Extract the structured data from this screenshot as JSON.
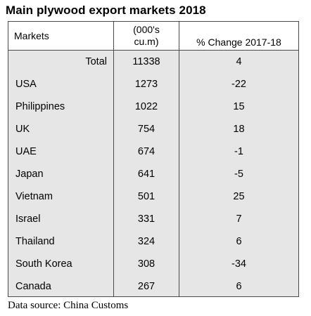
{
  "title": "Main plywood export markets 2018",
  "source": "Data source: China Customs",
  "chart_data": {
    "type": "table",
    "title": "Main plywood export markets 2018",
    "columns": [
      "Markets",
      "(000's\ncu.m)",
      "% Change 2017-18"
    ],
    "rows": [
      {
        "market": "Total",
        "volume": "11338",
        "change": "4"
      },
      {
        "market": "USA",
        "volume": "1273",
        "change": "-22"
      },
      {
        "market": "Philippines",
        "volume": "1022",
        "change": "15"
      },
      {
        "market": "UK",
        "volume": "754",
        "change": "18"
      },
      {
        "market": "UAE",
        "volume": "674",
        "change": "-1"
      },
      {
        "market": "Japan",
        "volume": "641",
        "change": "-5"
      },
      {
        "market": "Vietnam",
        "volume": "501",
        "change": "25"
      },
      {
        "market": "Israel",
        "volume": "331",
        "change": "7"
      },
      {
        "market": "Thailand",
        "volume": "324",
        "change": "6"
      },
      {
        "market": "South Korea",
        "volume": "308",
        "change": "-34"
      },
      {
        "market": "Canada",
        "volume": "267",
        "change": "6"
      }
    ]
  }
}
